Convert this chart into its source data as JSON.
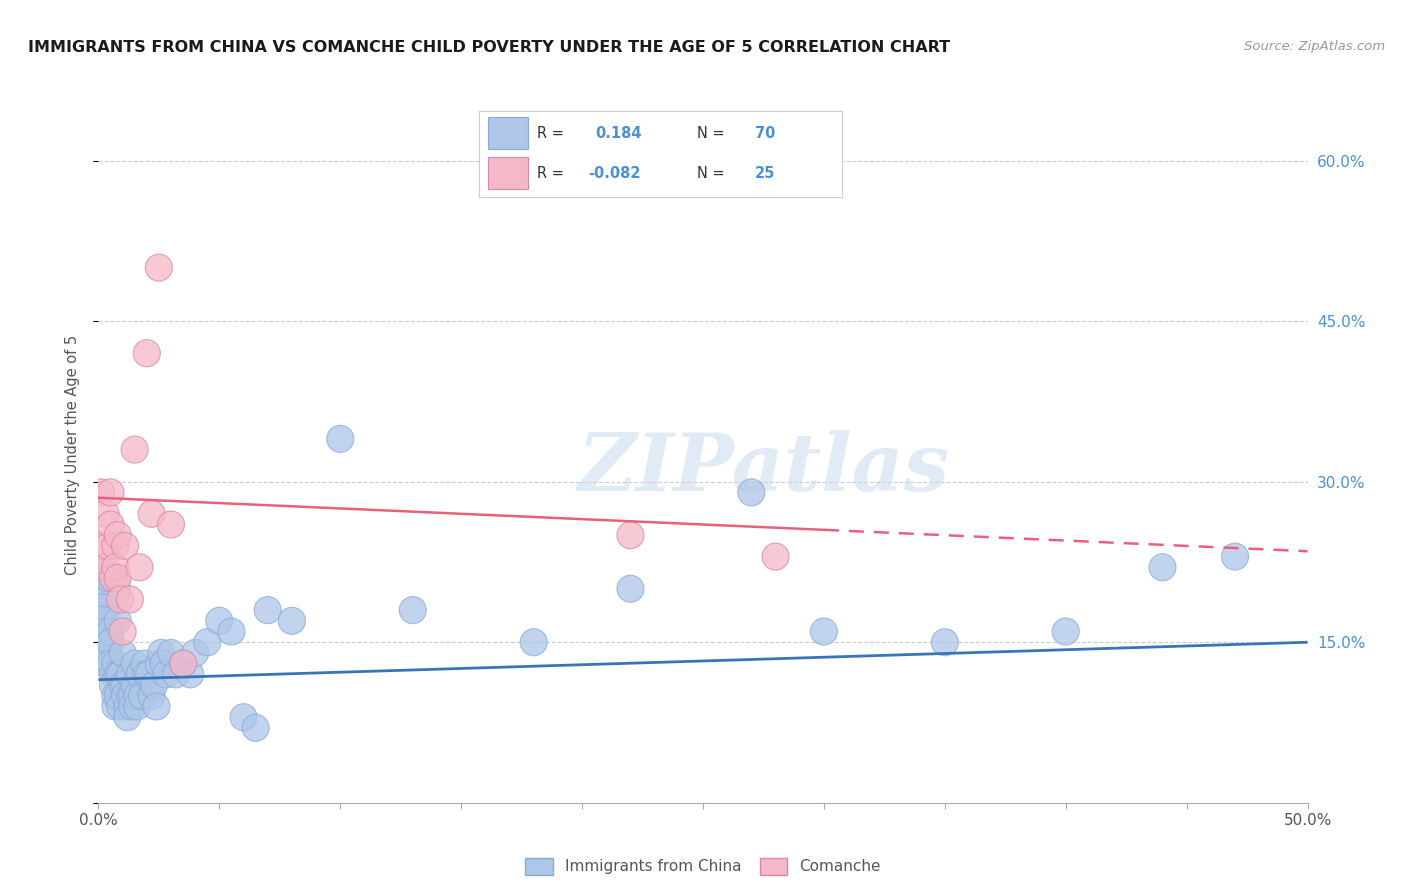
{
  "title": "IMMIGRANTS FROM CHINA VS COMANCHE CHILD POVERTY UNDER THE AGE OF 5 CORRELATION CHART",
  "source": "Source: ZipAtlas.com",
  "ylabel": "Child Poverty Under the Age of 5",
  "xmin": 0.0,
  "xmax": 0.5,
  "ymin": 0.0,
  "ymax": 0.65,
  "blue_R": 0.184,
  "blue_N": 70,
  "pink_R": -0.082,
  "pink_N": 25,
  "blue_color": "#aec6e8",
  "pink_color": "#f5b8c8",
  "blue_line_color": "#3a74b8",
  "pink_line_color": "#e8607a",
  "right_ytick_color": "#4a90d9",
  "watermark": "ZIPatlas",
  "legend_label_blue": "Immigrants from China",
  "legend_label_pink": "Comanche",
  "blue_scatter_x": [
    0.001,
    0.001,
    0.002,
    0.002,
    0.003,
    0.003,
    0.003,
    0.004,
    0.004,
    0.005,
    0.005,
    0.005,
    0.006,
    0.006,
    0.007,
    0.007,
    0.007,
    0.008,
    0.008,
    0.008,
    0.009,
    0.009,
    0.01,
    0.01,
    0.011,
    0.011,
    0.012,
    0.012,
    0.013,
    0.013,
    0.014,
    0.014,
    0.015,
    0.015,
    0.016,
    0.016,
    0.017,
    0.018,
    0.019,
    0.02,
    0.021,
    0.022,
    0.023,
    0.024,
    0.025,
    0.026,
    0.027,
    0.028,
    0.03,
    0.032,
    0.035,
    0.038,
    0.04,
    0.045,
    0.05,
    0.055,
    0.06,
    0.065,
    0.07,
    0.08,
    0.1,
    0.13,
    0.18,
    0.22,
    0.27,
    0.3,
    0.35,
    0.4,
    0.44,
    0.47
  ],
  "blue_scatter_y": [
    0.2,
    0.19,
    0.18,
    0.17,
    0.16,
    0.14,
    0.13,
    0.21,
    0.14,
    0.16,
    0.15,
    0.13,
    0.12,
    0.11,
    0.13,
    0.1,
    0.09,
    0.17,
    0.12,
    0.1,
    0.12,
    0.09,
    0.14,
    0.11,
    0.11,
    0.1,
    0.09,
    0.08,
    0.12,
    0.1,
    0.1,
    0.09,
    0.13,
    0.11,
    0.1,
    0.09,
    0.12,
    0.1,
    0.13,
    0.12,
    0.12,
    0.1,
    0.11,
    0.09,
    0.13,
    0.14,
    0.13,
    0.12,
    0.14,
    0.12,
    0.13,
    0.12,
    0.14,
    0.15,
    0.17,
    0.16,
    0.08,
    0.07,
    0.18,
    0.17,
    0.34,
    0.18,
    0.15,
    0.2,
    0.29,
    0.16,
    0.15,
    0.16,
    0.22,
    0.23
  ],
  "blue_scatter_size_large": [
    600,
    200,
    150,
    120
  ],
  "blue_large_idx": [
    0,
    1,
    2,
    3
  ],
  "pink_scatter_x": [
    0.001,
    0.002,
    0.003,
    0.003,
    0.004,
    0.005,
    0.005,
    0.006,
    0.007,
    0.007,
    0.008,
    0.008,
    0.009,
    0.01,
    0.011,
    0.013,
    0.015,
    0.017,
    0.02,
    0.022,
    0.025,
    0.03,
    0.035,
    0.22,
    0.28
  ],
  "pink_scatter_y": [
    0.29,
    0.24,
    0.27,
    0.22,
    0.24,
    0.26,
    0.29,
    0.21,
    0.24,
    0.22,
    0.25,
    0.21,
    0.19,
    0.16,
    0.24,
    0.19,
    0.33,
    0.22,
    0.42,
    0.27,
    0.5,
    0.26,
    0.13,
    0.25,
    0.23
  ],
  "yticks_right_labels": [
    "60.0%",
    "45.0%",
    "30.0%",
    "15.0%"
  ],
  "yticks_right_values": [
    0.6,
    0.45,
    0.3,
    0.15
  ],
  "ytick_grid_values": [
    0.0,
    0.15,
    0.3,
    0.45,
    0.6
  ],
  "grid_color": "#cccccc",
  "background_color": "#ffffff",
  "blue_intercept": 0.115,
  "blue_slope": 0.07,
  "pink_intercept": 0.285,
  "pink_slope": -0.1
}
